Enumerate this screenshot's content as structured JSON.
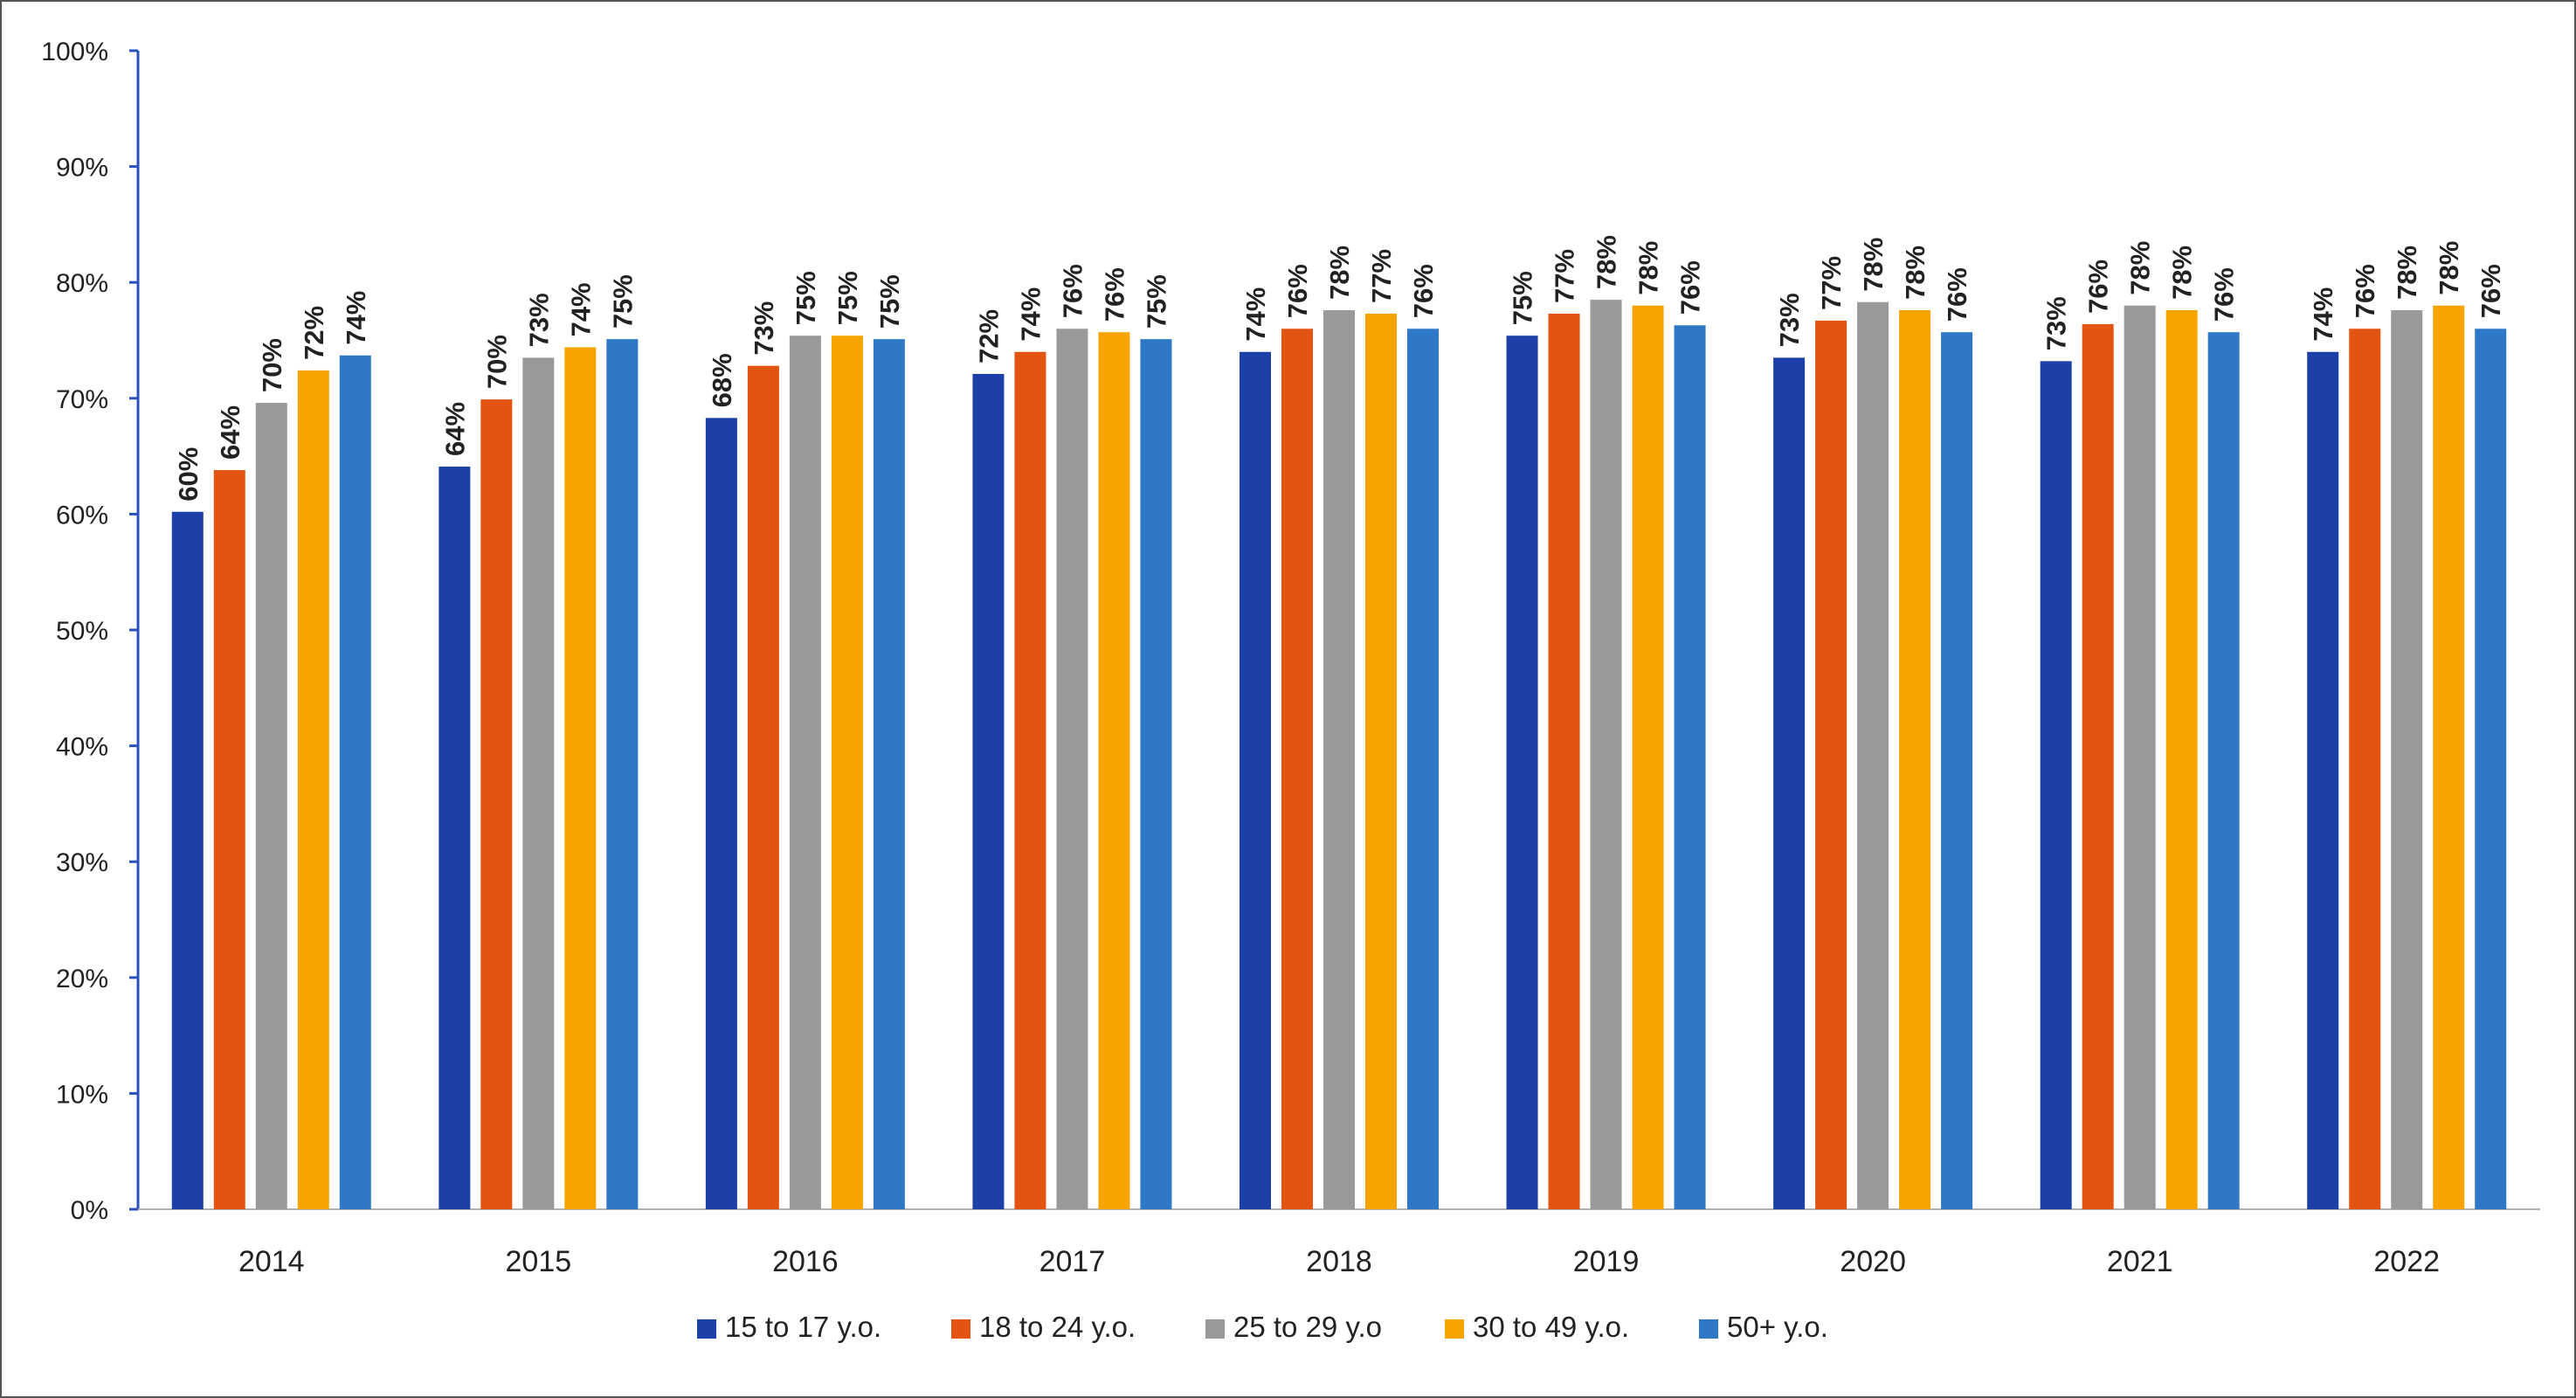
{
  "chart_data": {
    "type": "bar",
    "title": "",
    "xlabel": "",
    "ylabel": "",
    "ylim": [
      0,
      100
    ],
    "yticks": [
      "0%",
      "10%",
      "20%",
      "30%",
      "40%",
      "50%",
      "60%",
      "70%",
      "80%",
      "90%",
      "100%"
    ],
    "categories": [
      "2014",
      "2015",
      "2016",
      "2017",
      "2018",
      "2019",
      "2020",
      "2021",
      "2022"
    ],
    "legend_position": "bottom",
    "grid": false,
    "series": [
      {
        "name": "15 to 17 y.o.",
        "color": "#1c3fa8",
        "values": [
          60.2,
          64.1,
          68.3,
          72.1,
          74.0,
          75.4,
          73.5,
          73.2,
          74.0
        ],
        "labels": [
          "60%",
          "64%",
          "68%",
          "72%",
          "74%",
          "75%",
          "73%",
          "73%",
          "74%"
        ]
      },
      {
        "name": "18 to 24 y.o.",
        "color": "#e35410",
        "values": [
          63.8,
          69.9,
          72.8,
          74.0,
          76.0,
          77.3,
          76.7,
          76.4,
          76.0
        ],
        "labels": [
          "64%",
          "70%",
          "73%",
          "74%",
          "76%",
          "77%",
          "77%",
          "76%",
          "76%"
        ]
      },
      {
        "name": "25 to 29 y.o",
        "color": "#999999",
        "values": [
          69.6,
          73.5,
          75.4,
          76.0,
          77.6,
          78.5,
          78.3,
          78.0,
          77.6
        ],
        "labels": [
          "70%",
          "73%",
          "75%",
          "76%",
          "78%",
          "78%",
          "78%",
          "78%",
          "78%"
        ]
      },
      {
        "name": "30 to 49 y.o.",
        "color": "#f8a400",
        "values": [
          72.4,
          74.4,
          75.4,
          75.7,
          77.3,
          78.0,
          77.6,
          77.6,
          78.0
        ],
        "labels": [
          "72%",
          "74%",
          "75%",
          "76%",
          "77%",
          "78%",
          "78%",
          "78%",
          "78%"
        ]
      },
      {
        "name": "50+ y.o.",
        "color": "#2f78c8",
        "values": [
          73.7,
          75.1,
          75.1,
          75.1,
          76.0,
          76.3,
          75.7,
          75.7,
          76.0
        ],
        "labels": [
          "74%",
          "75%",
          "75%",
          "75%",
          "76%",
          "76%",
          "76%",
          "76%",
          "76%"
        ]
      }
    ]
  }
}
